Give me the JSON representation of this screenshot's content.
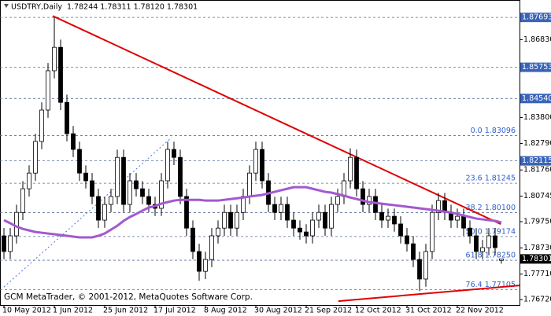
{
  "chart_data": {
    "type": "candlestick",
    "header": "USDTRY,Daily  1.78244 1.78311 1.78120 1.78301",
    "footer": "GCM MetaTrader, © 2001-2012, MetaQuotes Software Corp.",
    "categories": [
      "10 May 2012",
      null,
      null,
      null,
      null,
      null,
      null,
      null,
      "1 Jun 2012",
      null,
      null,
      null,
      null,
      null,
      null,
      null,
      "25 Jun 2012",
      null,
      null,
      null,
      null,
      null,
      null,
      null,
      "17 Jul 2012",
      null,
      null,
      null,
      null,
      null,
      null,
      null,
      "8 Aug 2012",
      null,
      null,
      null,
      null,
      null,
      null,
      null,
      "30 Aug 2012",
      null,
      null,
      null,
      null,
      null,
      null,
      null,
      "21 Sep 2012",
      null,
      null,
      null,
      null,
      null,
      null,
      null,
      "12 Oct 2012",
      null,
      null,
      null,
      null,
      null,
      null,
      null,
      "31 Oct 2012",
      null,
      null,
      null,
      null,
      null,
      null,
      null,
      "22 Nov 2012",
      null,
      null,
      null,
      null,
      null,
      null,
      null
    ],
    "open": [
      1.792,
      1.7859,
      1.792,
      1.8011,
      1.8103,
      1.8164,
      1.8287,
      1.8409,
      1.8562,
      1.8653,
      1.8439,
      1.8317,
      1.8256,
      1.8164,
      1.8134,
      1.8073,
      1.7981,
      1.8042,
      1.8073,
      1.8225,
      1.8042,
      1.8134,
      1.8103,
      1.8073,
      1.8042,
      1.8027,
      1.8134,
      1.8256,
      1.8225,
      1.8073,
      1.795,
      1.7859,
      1.7782,
      1.7828,
      1.792,
      1.795,
      1.8011,
      1.795,
      1.8011,
      1.8073,
      1.8164,
      1.8256,
      1.8134,
      1.8042,
      1.8011,
      1.8042,
      1.7981,
      1.795,
      1.7935,
      1.792,
      1.7981,
      1.8011,
      1.795,
      1.8042,
      1.8073,
      1.8134,
      1.8225,
      1.8103,
      1.8042,
      1.8073,
      1.8011,
      1.7981,
      1.7996,
      1.7966,
      1.792,
      1.7889,
      1.7828,
      1.7752,
      1.7859,
      1.8011,
      1.8057,
      1.8011,
      1.7981,
      1.7996,
      1.795,
      1.792,
      1.7859,
      1.7874,
      1.792,
      1.78244
    ],
    "high": [
      1.795,
      1.795,
      1.8041,
      1.8133,
      1.8194,
      1.8317,
      1.8439,
      1.8592,
      1.8769,
      1.8683,
      1.8469,
      1.8347,
      1.8286,
      1.8194,
      1.8164,
      1.8103,
      1.8072,
      1.8103,
      1.8255,
      1.8255,
      1.8164,
      1.8164,
      1.8133,
      1.8103,
      1.8072,
      1.8164,
      1.8286,
      1.8286,
      1.8255,
      1.8103,
      1.798,
      1.7889,
      1.7858,
      1.795,
      1.798,
      1.8041,
      1.8041,
      1.8041,
      1.8103,
      1.8194,
      1.8286,
      1.8286,
      1.8164,
      1.8072,
      1.8072,
      1.8072,
      1.8011,
      1.798,
      1.7965,
      1.8011,
      1.8041,
      1.8041,
      1.8072,
      1.8103,
      1.8164,
      1.826,
      1.8255,
      1.8133,
      1.8103,
      1.8103,
      1.8041,
      1.8026,
      1.8026,
      1.7996,
      1.795,
      1.7919,
      1.7858,
      1.7889,
      1.8041,
      1.8087,
      1.8087,
      1.8041,
      1.8026,
      1.8026,
      1.798,
      1.795,
      1.7904,
      1.795,
      1.795,
      1.78311
    ],
    "low": [
      1.7829,
      1.7829,
      1.789,
      1.7981,
      1.8073,
      1.8134,
      1.8257,
      1.8379,
      1.8532,
      1.8409,
      1.8287,
      1.8226,
      1.8134,
      1.8104,
      1.8043,
      1.7951,
      1.7951,
      1.8012,
      1.8043,
      1.8012,
      1.8012,
      1.8073,
      1.8043,
      1.8012,
      1.7997,
      1.7997,
      1.8104,
      1.8195,
      1.8043,
      1.792,
      1.7829,
      1.7745,
      1.7752,
      1.7798,
      1.789,
      1.792,
      1.792,
      1.792,
      1.7981,
      1.8043,
      1.8134,
      1.8104,
      1.8012,
      1.7981,
      1.7981,
      1.7951,
      1.792,
      1.7905,
      1.789,
      1.789,
      1.7951,
      1.792,
      1.792,
      1.8012,
      1.8043,
      1.8104,
      1.8073,
      1.8012,
      1.8012,
      1.7981,
      1.7951,
      1.7951,
      1.7936,
      1.789,
      1.7859,
      1.7798,
      1.7705,
      1.7722,
      1.7829,
      1.7981,
      1.7981,
      1.7951,
      1.7951,
      1.792,
      1.789,
      1.7829,
      1.7829,
      1.7844,
      1.7844,
      1.7812
    ],
    "close": [
      1.7859,
      1.792,
      1.8011,
      1.8103,
      1.8164,
      1.8287,
      1.8409,
      1.8562,
      1.8653,
      1.8439,
      1.8317,
      1.8256,
      1.8164,
      1.8134,
      1.8073,
      1.7981,
      1.8042,
      1.8073,
      1.8225,
      1.8042,
      1.8134,
      1.8103,
      1.8073,
      1.8042,
      1.8027,
      1.8134,
      1.8256,
      1.8225,
      1.8073,
      1.795,
      1.7859,
      1.7782,
      1.7828,
      1.792,
      1.795,
      1.8011,
      1.795,
      1.8011,
      1.8073,
      1.8164,
      1.8256,
      1.8134,
      1.8042,
      1.8011,
      1.8042,
      1.7981,
      1.795,
      1.7935,
      1.792,
      1.7981,
      1.8011,
      1.795,
      1.8042,
      1.8073,
      1.8134,
      1.8225,
      1.8103,
      1.8042,
      1.8073,
      1.8011,
      1.7981,
      1.7996,
      1.7966,
      1.792,
      1.7889,
      1.7828,
      1.7752,
      1.7859,
      1.8011,
      1.8057,
      1.8011,
      1.7981,
      1.7996,
      1.795,
      1.792,
      1.7859,
      1.7874,
      1.792,
      1.7874,
      1.78301
    ],
    "moving_average": {
      "color": "#a259d0",
      "values": [
        1.7981,
        1.7969,
        1.7956,
        1.7947,
        1.7941,
        1.7935,
        1.7932,
        1.7929,
        1.7926,
        1.7923,
        1.792,
        1.7917,
        1.7914,
        1.7914,
        1.7914,
        1.792,
        1.7929,
        1.7944,
        1.7959,
        1.7978,
        1.7993,
        1.8005,
        1.8018,
        1.803,
        1.8036,
        1.8045,
        1.8051,
        1.8057,
        1.806,
        1.806,
        1.806,
        1.806,
        1.8057,
        1.8057,
        1.8057,
        1.806,
        1.8063,
        1.8066,
        1.8069,
        1.8073,
        1.8076,
        1.8079,
        1.8085,
        1.8091,
        1.8097,
        1.8103,
        1.8109,
        1.8109,
        1.8109,
        1.8103,
        1.8097,
        1.8091,
        1.8088,
        1.8082,
        1.8076,
        1.8069,
        1.8063,
        1.8057,
        1.8051,
        1.8048,
        1.8045,
        1.8042,
        1.8039,
        1.8036,
        1.8033,
        1.803,
        1.8027,
        1.8024,
        1.8021,
        1.8018,
        1.8014,
        1.8011,
        1.8005,
        1.7999,
        1.7993,
        1.7987,
        1.7984,
        1.7981,
        1.7978,
        1.7972
      ]
    },
    "ylim": [
      1.7651,
      1.8837
    ],
    "yticks": [
      {
        "value": 1.8683,
        "label": "1.86830"
      },
      {
        "value": 1.838,
        "label": "1.83800"
      },
      {
        "value": 1.8279,
        "label": "1.82790"
      },
      {
        "value": 1.8176,
        "label": "1.81760"
      },
      1.80745,
      {
        "value": 1.7975,
        "label": "1.79750"
      },
      {
        "value": 1.7873,
        "label": "1.78730"
      },
      {
        "value": 1.7771,
        "label": "1.77710"
      },
      {
        "value": 1.7672,
        "label": "1.76720"
      }
    ],
    "hlines": [
      1.87693,
      1.85753,
      {
        "value": 1.8454,
        "label": "1.84540"
      },
      1.82115
    ],
    "current_price": 1.78301,
    "fibo": [
      {
        "value": 1.83096,
        "label": "0.0 1.83096"
      },
      {
        "value": 1.81245,
        "label": "23.6 1.81245"
      },
      {
        "value": 1.801,
        "label": "38.2 1.80100"
      },
      {
        "value": 1.79174,
        "label": "50.0 1.79174"
      },
      {
        "value": 1.7825,
        "label": "61.8 1.78250"
      },
      {
        "value": 1.77105,
        "label": "76.4 1.77105"
      }
    ],
    "trendlines": [
      {
        "color": "#e00000",
        "style": "solid",
        "points": [
          [
            7.75,
            1.8775
          ],
          [
            78.9,
            1.79655
          ]
        ]
      },
      {
        "color": "#e00000",
        "style": "solid",
        "points": [
          [
            53.1,
            1.7666
          ],
          [
            81.9,
            1.77271
          ]
        ]
      },
      {
        "color": "#4a78d8",
        "style": "dotted",
        "points": [
          [
            0,
            1.7721
          ],
          [
            26.6,
            1.83017
          ]
        ]
      }
    ]
  }
}
